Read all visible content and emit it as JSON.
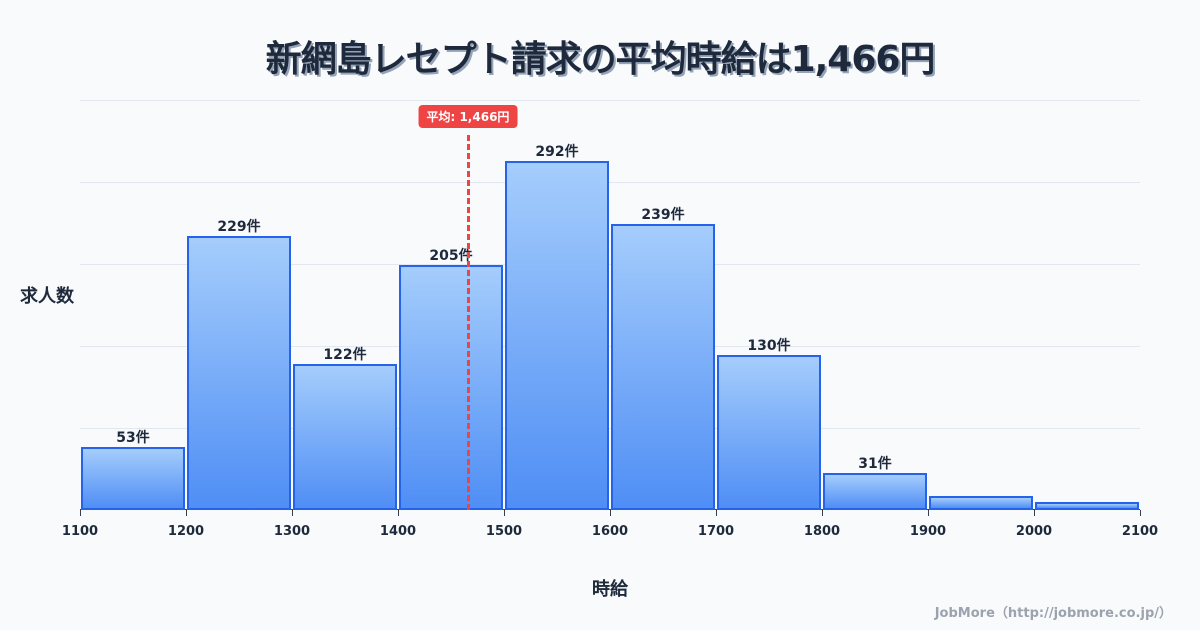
{
  "title": "新網島レセプト請求の平均時給は1,466円",
  "footer": "JobMore（http://jobmore.co.jp/）",
  "average_badge": "平均: 1,466円",
  "colors": {
    "bar_fill_top": "#a5cdfc",
    "bar_fill_bottom": "#4f8ef5",
    "bar_border": "#2563eb",
    "average_line": "#ef4444",
    "text": "#1e293b",
    "grid": "#e2e8f0",
    "background": "#f8fafc"
  },
  "chart_data": {
    "type": "bar",
    "title": "新網島レセプト請求の平均時給は1,466円",
    "xlabel": "時給",
    "ylabel": "求人数",
    "categories": [
      "1100-1200",
      "1200-1300",
      "1300-1400",
      "1400-1500",
      "1500-1600",
      "1600-1700",
      "1700-1800",
      "1800-1900",
      "1900-2000",
      "2000-2100"
    ],
    "values": [
      53,
      229,
      122,
      205,
      292,
      239,
      130,
      31,
      12,
      7
    ],
    "bar_labels": [
      "53件",
      "229件",
      "122件",
      "205件",
      "292件",
      "239件",
      "130件",
      "31件",
      "",
      ""
    ],
    "x_ticks": [
      "1100",
      "1200",
      "1300",
      "1400",
      "1500",
      "1600",
      "1700",
      "1800",
      "1900",
      "2000",
      "2100"
    ],
    "xlim": [
      1100,
      2100
    ],
    "ylim": [
      0,
      343
    ],
    "grid": true,
    "average": {
      "value": 1466,
      "label": "平均: 1,466円"
    },
    "legend": null
  }
}
